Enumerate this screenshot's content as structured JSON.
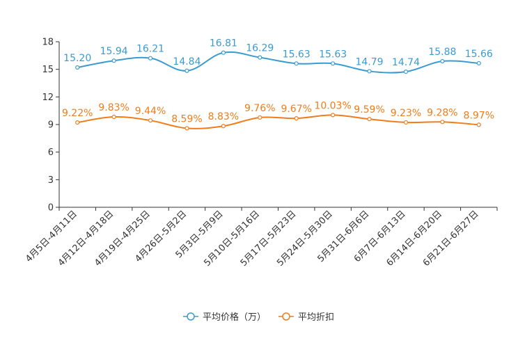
{
  "chart_data": {
    "type": "line",
    "categories": [
      "4月5日-4月11日",
      "4月12日-4月18日",
      "4月19日-4月25日",
      "4月26日-5月2日",
      "5月3日-5月9日",
      "5月10日-5月16日",
      "5月17日-5月23日",
      "5月24日-5月30日",
      "5月31日-6月6日",
      "6月7日-6月13日",
      "6月14日-6月20日",
      "6月21日-6月27日"
    ],
    "series": [
      {
        "name": "平均价格（万）",
        "color": "#3a9bd0",
        "values": [
          15.2,
          15.94,
          16.21,
          14.84,
          16.81,
          16.29,
          15.63,
          15.63,
          14.79,
          14.74,
          15.88,
          15.66
        ],
        "labels": [
          "15.20",
          "15.94",
          "16.21",
          "14.84",
          "16.81",
          "16.29",
          "15.63",
          "15.63",
          "14.79",
          "14.74",
          "15.88",
          "15.66"
        ]
      },
      {
        "name": "平均折扣",
        "color": "#f07c1a",
        "values": [
          9.22,
          9.83,
          9.44,
          8.59,
          8.83,
          9.76,
          9.67,
          10.03,
          9.59,
          9.23,
          9.28,
          8.97
        ],
        "labels": [
          "9.22%",
          "9.83%",
          "9.44%",
          "8.59%",
          "8.83%",
          "9.76%",
          "9.67%",
          "10.03%",
          "9.59%",
          "9.23%",
          "9.28%",
          "8.97%"
        ]
      }
    ],
    "yticks": [
      "0",
      "3",
      "6",
      "9",
      "12",
      "15",
      "18"
    ],
    "ylim": [
      0,
      18
    ],
    "title": "",
    "xlabel": "",
    "ylabel": "",
    "grid": false,
    "legend": "bottom-center",
    "axis_color": "#333333"
  }
}
